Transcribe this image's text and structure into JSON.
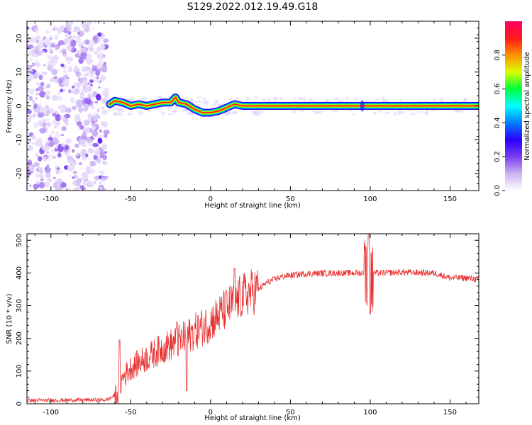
{
  "title": "S129.2022.012.19.49.G18",
  "chart_data": [
    {
      "type": "heatmap",
      "panel": "spectrogram",
      "xlabel": "Height of straight line (km)",
      "ylabel": "Frequency (Hz)",
      "xlim": [
        -115,
        168
      ],
      "ylim": [
        -25,
        25
      ],
      "xticks": [
        -100,
        -50,
        0,
        50,
        100,
        150
      ],
      "yticks": [
        -20,
        -10,
        0,
        10,
        20
      ],
      "grid": false,
      "ridge": {
        "x": [
          -63,
          -60,
          -55,
          -50,
          -45,
          -40,
          -35,
          -30,
          -25,
          -22,
          -20,
          -15,
          -10,
          -5,
          0,
          5,
          10,
          15,
          20,
          40,
          60,
          80,
          95,
          100,
          120,
          140,
          168
        ],
        "y": [
          0.5,
          1.5,
          1.0,
          0.0,
          0.5,
          0.0,
          0.5,
          1.0,
          1.0,
          2.5,
          1.0,
          0.5,
          -1.0,
          -2.0,
          -2.0,
          -1.5,
          -0.5,
          0.5,
          0.0,
          0.0,
          0.0,
          0.0,
          0.0,
          0.0,
          0.0,
          0.0,
          0.0
        ]
      },
      "noise_region_x": [
        -115,
        -65
      ],
      "colorbar": {
        "label": "Normalized spectral amplitude",
        "range": [
          0,
          1
        ],
        "ticks": [
          0.0,
          0.2,
          0.4,
          0.6,
          0.8
        ],
        "tick_labels": [
          "0.0",
          "0.2",
          "0.4",
          "0.6",
          "0.8"
        ],
        "colors": [
          "#ffffff",
          "#c9b4f2",
          "#7a3df0",
          "#2a00ff",
          "#0080ff",
          "#00ffff",
          "#00ff40",
          "#d8ff00",
          "#ff9000",
          "#ff1a1a",
          "#ff0066"
        ]
      }
    },
    {
      "type": "line",
      "panel": "snr",
      "xlabel": "Height of straight line (km)",
      "ylabel": "SNR (10 * v/v)",
      "xlim": [
        -115,
        168
      ],
      "ylim": [
        0,
        520
      ],
      "xticks": [
        -100,
        -50,
        0,
        50,
        100,
        150
      ],
      "yticks": [
        0,
        100,
        200,
        300,
        400,
        500
      ],
      "color": "#e83030",
      "trend": {
        "x": [
          -115,
          -65,
          -58,
          -55,
          -50,
          -40,
          -30,
          -20,
          -10,
          0,
          10,
          20,
          30,
          35,
          45,
          60,
          80,
          95,
          100,
          105,
          120,
          140,
          150,
          160,
          168
        ],
        "y": [
          10,
          12,
          30,
          80,
          110,
          140,
          170,
          190,
          220,
          250,
          290,
          330,
          350,
          370,
          390,
          398,
          400,
          400,
          400,
          400,
          402,
          400,
          385,
          385,
          380
        ]
      },
      "spikes": [
        {
          "x": -57,
          "y": 195
        },
        {
          "x": -21,
          "y": 250
        },
        {
          "x": -15,
          "y": 40
        },
        {
          "x": 15,
          "y": 415
        },
        {
          "x": 99,
          "y": 520
        },
        {
          "x": 100,
          "y": 275
        }
      ]
    }
  ]
}
